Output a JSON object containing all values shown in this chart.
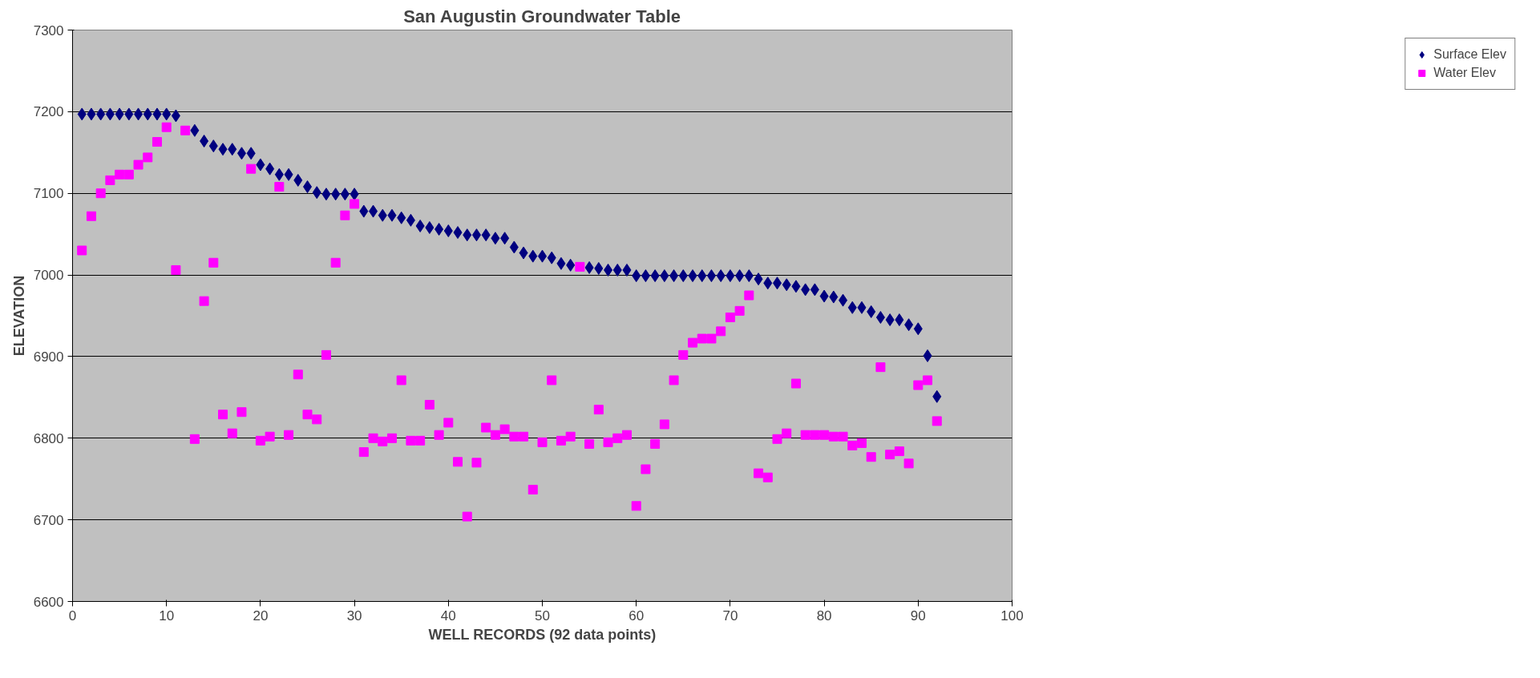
{
  "chart_data": {
    "type": "scatter",
    "title": "San Augustin Groundwater Table",
    "xlabel": "WELL RECORDS (92 data points)",
    "ylabel": "ELEVATION",
    "x": [
      1,
      2,
      3,
      4,
      5,
      6,
      7,
      8,
      9,
      10,
      11,
      12,
      13,
      14,
      15,
      16,
      17,
      18,
      19,
      20,
      21,
      22,
      23,
      24,
      25,
      26,
      27,
      28,
      29,
      30,
      31,
      32,
      33,
      34,
      35,
      36,
      37,
      38,
      39,
      40,
      41,
      42,
      43,
      44,
      45,
      46,
      47,
      48,
      49,
      50,
      51,
      52,
      53,
      54,
      55,
      56,
      57,
      58,
      59,
      60,
      61,
      62,
      63,
      64,
      65,
      66,
      67,
      68,
      69,
      70,
      71,
      72,
      73,
      74,
      75,
      76,
      77,
      78,
      79,
      80,
      81,
      82,
      83,
      84,
      85,
      86,
      87,
      88,
      89,
      90,
      91,
      92
    ],
    "series": [
      {
        "name": "Surface Elev",
        "color": "#000080",
        "marker": "diamond",
        "values": [
          7197,
          7197,
          7197,
          7197,
          7197,
          7197,
          7197,
          7197,
          7197,
          7197,
          7195,
          null,
          7177,
          7164,
          7158,
          7154,
          7154,
          7149,
          7149,
          7135,
          7130,
          7123,
          7123,
          7116,
          7108,
          7101,
          7099,
          7099,
          7099,
          7099,
          7078,
          7078,
          7073,
          7073,
          7070,
          7067,
          7060,
          7058,
          7056,
          7054,
          7052,
          7049,
          7049,
          7049,
          7045,
          7045,
          7034,
          7027,
          7023,
          7023,
          7021,
          7014,
          7012,
          null,
          7009,
          7008,
          7006,
          7006,
          7006,
          6999,
          6999,
          6999,
          6999,
          6999,
          6999,
          6999,
          6999,
          6999,
          6999,
          6999,
          6999,
          6999,
          6995,
          6990,
          6990,
          6988,
          6986,
          6982,
          6982,
          6974,
          6973,
          6969,
          6960,
          6960,
          6955,
          6948,
          6945,
          6945,
          6939,
          6934,
          6901,
          6851
        ]
      },
      {
        "name": "Water Elev",
        "color": "#ff00ff",
        "marker": "square",
        "values": [
          7030,
          7072,
          7100,
          7116,
          7123,
          7123,
          7135,
          7144,
          7163,
          7181,
          7006,
          7177,
          6799,
          6968,
          7015,
          6829,
          6806,
          6832,
          7130,
          6797,
          6802,
          7108,
          6804,
          6878,
          6829,
          6823,
          6902,
          7015,
          7073,
          7087,
          6783,
          6800,
          6796,
          6800,
          6871,
          6797,
          6797,
          6841,
          6804,
          6819,
          6771,
          6704,
          6770,
          6813,
          6804,
          6811,
          6802,
          6802,
          6737,
          6795,
          6871,
          6797,
          6802,
          7010,
          6793,
          6835,
          6795,
          6800,
          6804,
          6717,
          6762,
          6793,
          6817,
          6871,
          6902,
          6917,
          6922,
          6922,
          6931,
          6948,
          6956,
          6975,
          6757,
          6752,
          6799,
          6806,
          6867,
          6804,
          6804,
          6804,
          6802,
          6802,
          6791,
          6794,
          6777,
          6887,
          6780,
          6784,
          6769,
          6865,
          6871,
          6821
        ]
      }
    ],
    "xlim": [
      0,
      100
    ],
    "xticks": [
      0,
      10,
      20,
      30,
      40,
      50,
      60,
      70,
      80,
      90,
      100
    ],
    "ylim": [
      6600,
      7300
    ],
    "yticks": [
      6600,
      6700,
      6800,
      6900,
      7000,
      7100,
      7200,
      7300
    ],
    "grid": "y",
    "legend": "right"
  }
}
